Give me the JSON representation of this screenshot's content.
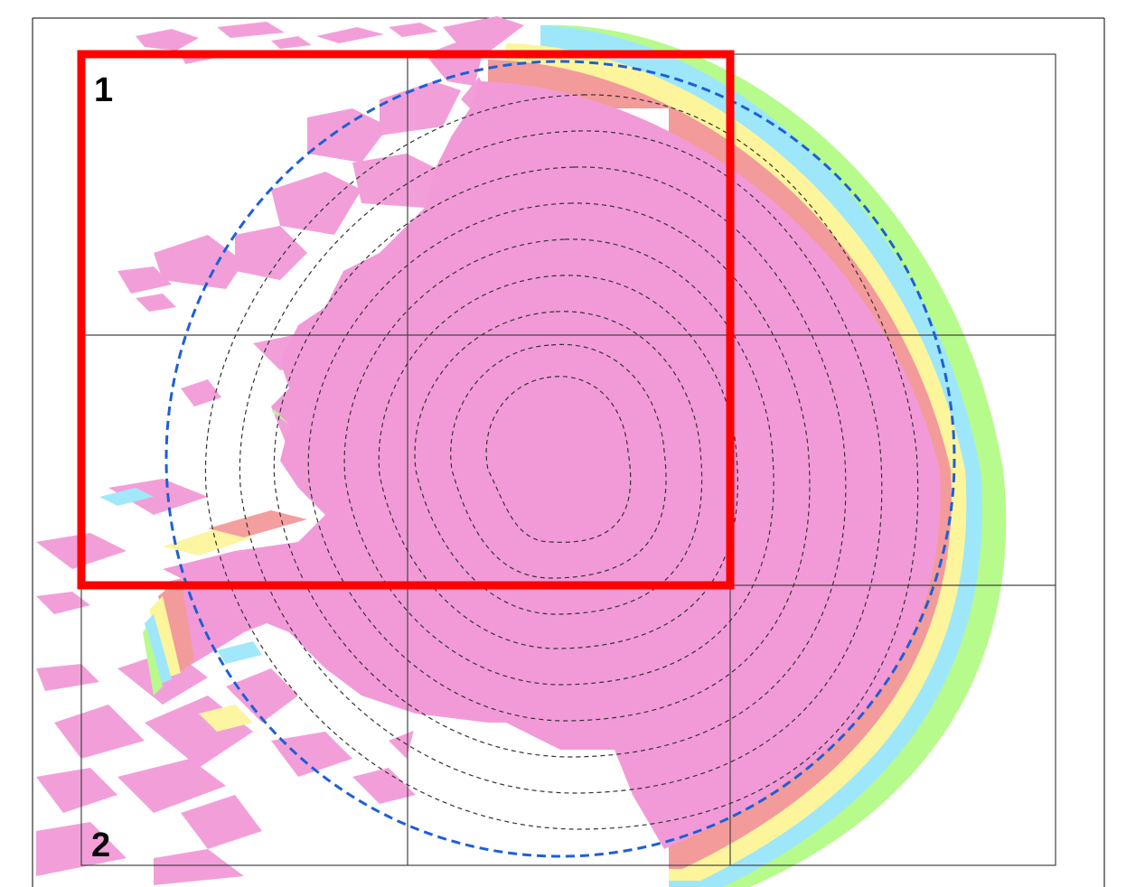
{
  "map": {
    "colors": {
      "background": "#ffffff",
      "frame": "#000000",
      "grid": "#444444",
      "core": "#f29ad8",
      "band_salmon": "#f39a9a",
      "band_yellow": "#fdf59c",
      "band_cyan": "#9ee7fb",
      "band_green": "#b7fb8c",
      "coverage_circle": "#1e5fd6",
      "contours": "#333333",
      "contours_outer": "#222222",
      "highlight_box": "#ff0000"
    },
    "labels": {
      "cell_1": "1",
      "cell_2": "2"
    },
    "icons": [
      "highlight-rectangle",
      "coverage-circle",
      "contour-lines"
    ]
  }
}
